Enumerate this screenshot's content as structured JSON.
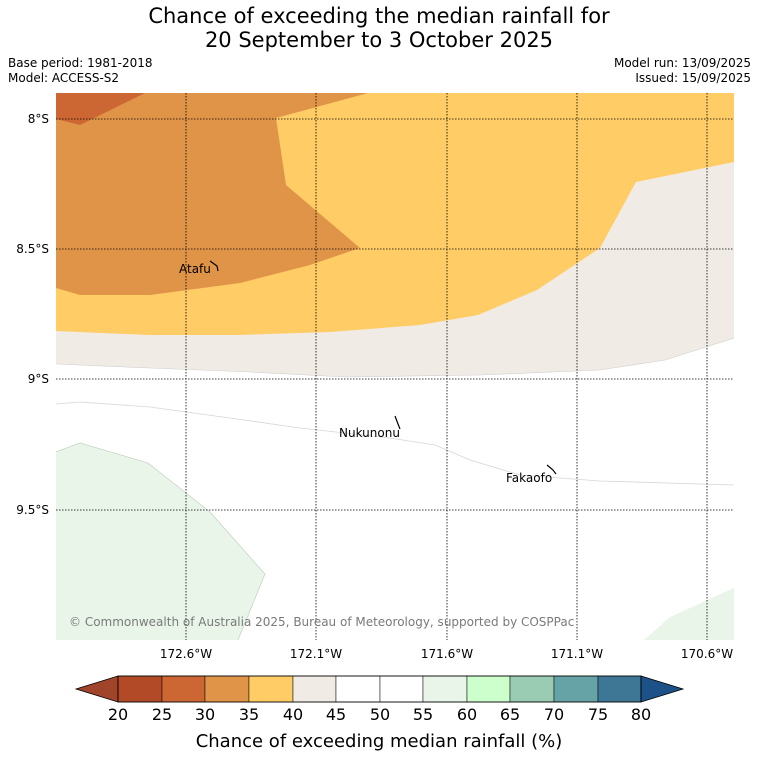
{
  "title": {
    "line1": "Chance of exceeding the median rainfall for",
    "line2": "20 September to 3 October 2025"
  },
  "info": {
    "base_period": "Base period: 1981-2018",
    "model": "Model: ACCESS-S2",
    "model_run": "Model run: 13/09/2025",
    "issued": "Issued: 15/09/2025"
  },
  "map": {
    "lat_labels": [
      "8°S",
      "8.5°S",
      "9°S",
      "9.5°S"
    ],
    "lon_labels": [
      "172.6°W",
      "172.1°W",
      "171.6°W",
      "171.1°W",
      "170.6°W"
    ],
    "places": [
      {
        "name": "Atafu"
      },
      {
        "name": "Nukunonu"
      },
      {
        "name": "Fakaofo"
      }
    ],
    "copyright": "© Commonwealth of Australia 2025, Bureau of Meteorology, supported by COSPPac",
    "colors": {
      "below_20": "#a0442a",
      "20_25": "#b24a28",
      "25_30": "#cc6633",
      "30_35": "#e09448",
      "35_40": "#ffcc66",
      "40_45": "#f0ebe5",
      "45_55": "#ffffff",
      "55_60": "#e9f5e9",
      "60_65": "#ccffcc",
      "65_70": "#99ccb3",
      "70_75": "#66a3a6",
      "75_80": "#3e7795",
      "above_80": "#1d5288"
    }
  },
  "colorbar": {
    "ticks": [
      "20",
      "25",
      "30",
      "35",
      "40",
      "45",
      "50",
      "55",
      "60",
      "65",
      "70",
      "75",
      "80"
    ],
    "label": "Chance of exceeding median rainfall (%)"
  }
}
